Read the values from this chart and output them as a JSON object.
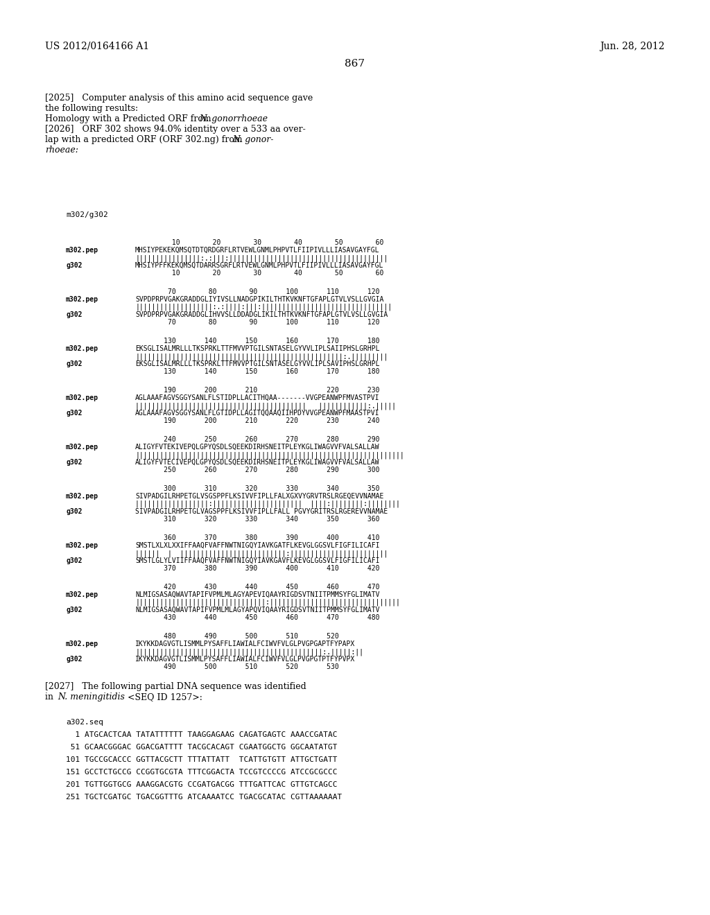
{
  "background_color": "#ffffff",
  "header_left": "US 2012/0164166 A1",
  "header_right": "Jun. 28, 2012",
  "page_number": "867",
  "seq_blocks": [
    {
      "num_top": "         10        20        30        40        50        60",
      "pep": "MHSIYPEKEKQMSQTDTQRDGRFLRTVEWLGNMLPHPVTLFIIPIVLLLIASAVGAYFGL",
      "match": "||||||||||||||||:.:|||:|||||||||||||||||||||||||||||||||||||||",
      "g302": "MHSIYPFFKEKQMSQTDARRSGRFLRTVEWLGNMLPHPVTLFIIPIVLLLIASAVGAYFGL",
      "num_bot": "         10        20        30        40        50        60"
    },
    {
      "num_top": "        70        80        90       100       110       120",
      "pep": "SVPDPRPVGAKGRADDGLIYIVSLLNADGPIKILTHTKVKNFTGFAPLGTVLVSLLGVGIA",
      "match": "|||||||||||||||||||:.:||||:|||:||||||||||||||||||||||||||||||||",
      "g302": "SVPDPRPVGAKGRADDGLIHVVSLLDDADGLIKILTHTKVKNFTGFAPLGTVLVSLLGVGIA",
      "num_bot": "        70        80        90       100       110       120"
    },
    {
      "num_top": "       130       140       150       160       170       180",
      "pep": "EKSGLISALMRLLLTKSPRKLTTFMVVPTGILSNTASELGYVVLIPLSAIIPHSLGRHPL",
      "match": "|||||||||||||||||||||||||||||||||||||||||||||||||||:.|||||||||",
      "g302": "EKSGLISALMRLLLTKSPRKLTTFMVVPTGILSNTASELGYVVLIPLSAVIPHSLGRHPL",
      "num_bot": "       130       140       150       160       170       180"
    },
    {
      "num_top": "       190       200       210                 220       230",
      "pep": "AGLAAAFAGVSGGYSANLFLSTIDPLLACITHQAA-------VVGPEANWPFMVASTPVI",
      "match": "||||||||||||||||||||||||||||||||||||||||||   ||||||||||||:.|||||",
      "g302": "AGLAAAFAGVSGGYSANLFLGTIDPLLAGITQQAAQIIHPDYVVGPEANWPFMAASTPVI",
      "num_bot": "       190       200       210       220       230       240"
    },
    {
      "num_top": "       240       250       260       270       280       290",
      "pep": "ALIGYFVTEKIVEPQLGPYQSDLSQEEKDIRHSNEITPLEYKGLIWAGVVFVALSALLAW",
      "match": "||||||||||||||||||||||||||||||||||||||||||||||||||||||||||||||||||",
      "g302": "ALIGYFVTECIVEPQLGPYQSDLSQEEKDIRHSNEITPLEYKGLIWAGVVFVALSALLAW",
      "num_bot": "       250       260       270       280       290       300"
    },
    {
      "num_top": "       300       310       320       330       340       350",
      "pep": "SIVPADGILRHPETGLVSGSPPFLKSIVVFIPLLFALXGXVYGRVTRSLRGEQEVVNAMAE",
      "match": "||||||||||||||||||:||||||||||||||||||||||  ||||:||||||||:||||||||",
      "g302": "SIVPADGILRHPETGLVAGSPPFLKSIVVFIPLLFALL PGVYGRITRSLRGEREVVNAMAE",
      "num_bot": "       310       320       330       340       350       360"
    },
    {
      "num_top": "       360       370       380       390       400       410",
      "pep": "SMSTLXLXLXXIFFAAQFVAFFNWTNIGQYIAVKGATFLKEVGLGGSVLFIGFILICAFI",
      "match": "||||||  |  ||||||||||||||||||||||||||:||||||||||||||||||||||||",
      "g302": "SMSTLGLYLVIIFFAAQFVAFFNWTNIGQYIAVKGAVFLKEVGLGGSVLFIGFILICAFI",
      "num_bot": "       370       380       390       400       410       420"
    },
    {
      "num_top": "       420       430       440       450       460       470",
      "pep": "NLMIGSASAQWAVTAPIFVPMLMLAGYAPEVIQAAYRIGDSVTNIITPMMSYFGLIMATV",
      "match": "||||||||||||||||||||||||||||||||:||||||||||||||||||||||||||||||||",
      "g302": "NLMIGSASAQWAVTAPIFVPMLMLAGYAPQVIQAAYRIGDSVTNIITPMMSYFGLIMATV",
      "num_bot": "       430       440       450       460       470       480"
    },
    {
      "num_top": "       480       490       500       510       520",
      "pep": "IKYKKDAGVGTLISMMLPYSAFFLIAWIALFCIWVFVLGLPVGPGAPTFYPAPX",
      "match": "||||||||||||||||||||||||||||||||||||||||||||||:.|||||:||",
      "g302": "IKYKKDAGVGTLISMMLPYSAFFLIAWIALFCIWVFVLGLPVGPGTPTFYPVPX",
      "num_bot": "       490       500       510       520       530"
    }
  ],
  "dna_lines": [
    "a302.seq",
    "  1 ATGCACTCAA TATATTTTTT TAAGGAGAAG CAGATGAGTC AAACCGATAC",
    " 51 GCAACGGGAC GGACGATTTT TACGCACAGT CGAATGGCTG GGCAATATGT",
    "101 TGCCGCACCC GGTTACGCTT TTTATTATT  TCATTGTGTT ATTGCTGATT",
    "151 GCCTCTGCCG CCGGTGCGTA TTTCGGACTA TCCGTCCCCG ATCCGCGCCC",
    "201 TGTTGGTGCG AAAGGACGTG CCGATGACGG TTTGATTCAC GTTGTCAGCC",
    "251 TGCTCGATGC TGACGGTTTG ATCAAAATCC TGACGCATAC CGTTAAAAAAT"
  ]
}
